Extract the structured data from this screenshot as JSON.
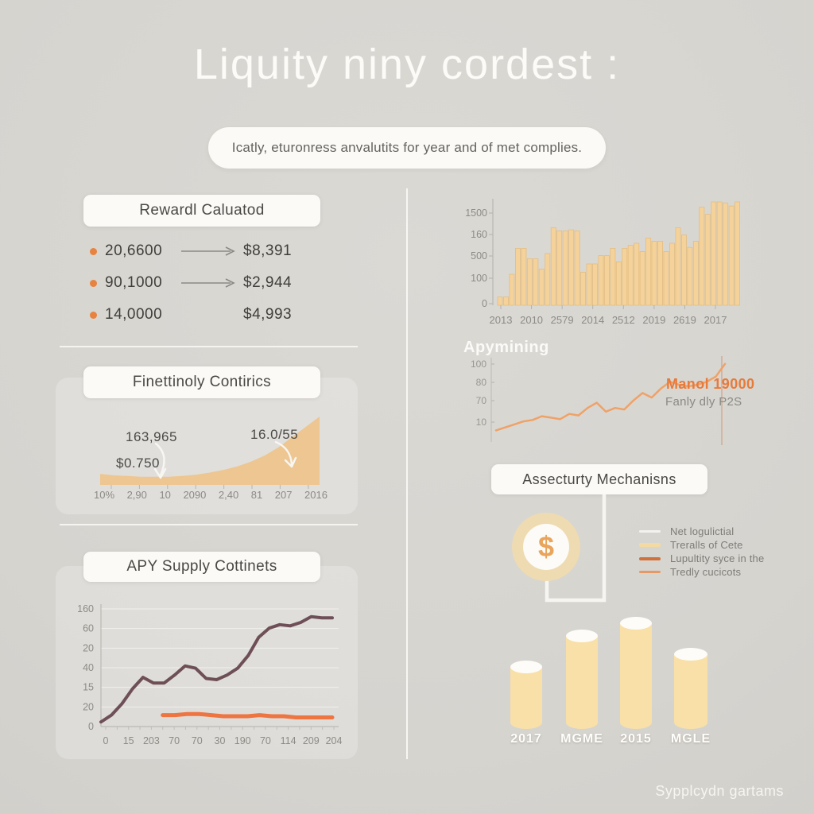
{
  "page": {
    "title": "Liquity niny cordest :",
    "subtitle": "Icatly, eturonress anvalutits for year and of met complies.",
    "footer": "Sypplcydn gartams"
  },
  "colors": {
    "background": "#d8d6d1",
    "card": "#fbfaf7",
    "accent_orange": "#e8823f",
    "area_fill": "#edc691",
    "bar_fill": "#f4d29a",
    "bar_stroke": "#e3bd82",
    "line_dark": "#6e4f58",
    "line_orange": "#ee7440",
    "mining_line": "#efa268",
    "cylinder_fill": "#f9e0a8",
    "coin_ring": "#eedbb2",
    "coin_dollar": "#e9a55b"
  },
  "reward_card": {
    "title": "Rewardl Caluatod",
    "rows": [
      {
        "amount": "20,6600",
        "value": "$8,391"
      },
      {
        "amount": "90,1000",
        "value": "$2,944"
      },
      {
        "amount": "14,0000",
        "value": "$4,993"
      }
    ]
  },
  "mechanisms": {
    "title": "Assecturty Mechanisns",
    "coin_symbol": "$",
    "legend": [
      {
        "label": "Net logulictial",
        "color": "#f3f2ee"
      },
      {
        "label": "Treralls of Cete",
        "color": "#f3d9a2"
      },
      {
        "label": "Lupultity syce in the",
        "color": "#d2703d"
      },
      {
        "label": "Tredly cucicots",
        "color": "#e59a66"
      }
    ]
  },
  "chart_data": [
    {
      "id": "growth_area",
      "type": "area",
      "title": "Finettinoly Contirics",
      "x_ticks": [
        "10%",
        "2,90",
        "10",
        "2090",
        "2,40",
        "81",
        "207",
        "2016"
      ],
      "values": [
        16,
        14,
        13,
        12,
        12,
        12,
        13,
        15,
        18,
        22,
        27,
        34,
        43,
        55,
        70,
        85,
        100
      ],
      "ylim": [
        0,
        100
      ],
      "fill": "#edc691",
      "annotations": [
        {
          "text": "163,965"
        },
        {
          "text": "$0.750"
        },
        {
          "text": "16.0/55"
        }
      ]
    },
    {
      "id": "apy_supply",
      "type": "line",
      "title": "APY Supply Cottinets",
      "y_ticks": [
        "160",
        "60",
        "20",
        "40",
        "15",
        "20",
        "0"
      ],
      "x_ticks": [
        "0",
        "15",
        "203",
        "70",
        "70",
        "30",
        "190",
        "70",
        "114",
        "209",
        "204"
      ],
      "grid": true,
      "series": [
        {
          "name": "supply-dark",
          "color": "#6e4f58",
          "width": 4,
          "x_start": 0,
          "values": [
            4,
            10,
            20,
            33,
            43,
            38,
            38,
            45,
            53,
            51,
            42,
            41,
            45,
            51,
            62,
            78,
            86,
            89,
            88,
            91,
            96,
            95,
            95
          ]
        },
        {
          "name": "supply-orange",
          "color": "#ee7440",
          "width": 5,
          "x_start": 0.26,
          "values": [
            10,
            10,
            11,
            11,
            10,
            9,
            9,
            9,
            10,
            9,
            9,
            8,
            8,
            8,
            8
          ]
        }
      ]
    },
    {
      "id": "volume_bars",
      "type": "bar",
      "y_ticks": [
        "1500",
        "160",
        "500",
        "100",
        "0"
      ],
      "x_ticks": [
        "2013",
        "2010",
        "2579",
        "2014",
        "2512",
        "2019",
        "2619",
        "2017"
      ],
      "fill": "#f4d29a",
      "stroke": "#e3bd82",
      "values": [
        8,
        8,
        30,
        55,
        55,
        45,
        45,
        35,
        50,
        75,
        72,
        72,
        73,
        72,
        32,
        40,
        40,
        48,
        48,
        55,
        42,
        55,
        58,
        60,
        52,
        65,
        62,
        62,
        52,
        60,
        75,
        68,
        56,
        62,
        95,
        88,
        100,
        100,
        99,
        96,
        100
      ]
    },
    {
      "id": "apymining",
      "type": "line",
      "title": "Apymining",
      "y_ticks": [
        "100",
        "80",
        "70",
        "10"
      ],
      "series": [
        {
          "name": "mining-orange",
          "color": "#efa268",
          "width": 2.5,
          "x_start": 0,
          "values": [
            7,
            11,
            15,
            19,
            21,
            26,
            24,
            22,
            29,
            27,
            37,
            44,
            32,
            37,
            35,
            47,
            57,
            51,
            63,
            72,
            68,
            66,
            68,
            72,
            79,
            96
          ]
        }
      ],
      "annotations": [
        {
          "text": "Manol 19000"
        },
        {
          "text": "Fanly dly P2S"
        }
      ]
    },
    {
      "id": "cylinders",
      "type": "bar",
      "style": "cylinder",
      "categories": [
        "2017",
        "MGME",
        "2015",
        "MGLE"
      ],
      "values": [
        59,
        88,
        100,
        71
      ],
      "fill": "#f9e0a8"
    }
  ]
}
